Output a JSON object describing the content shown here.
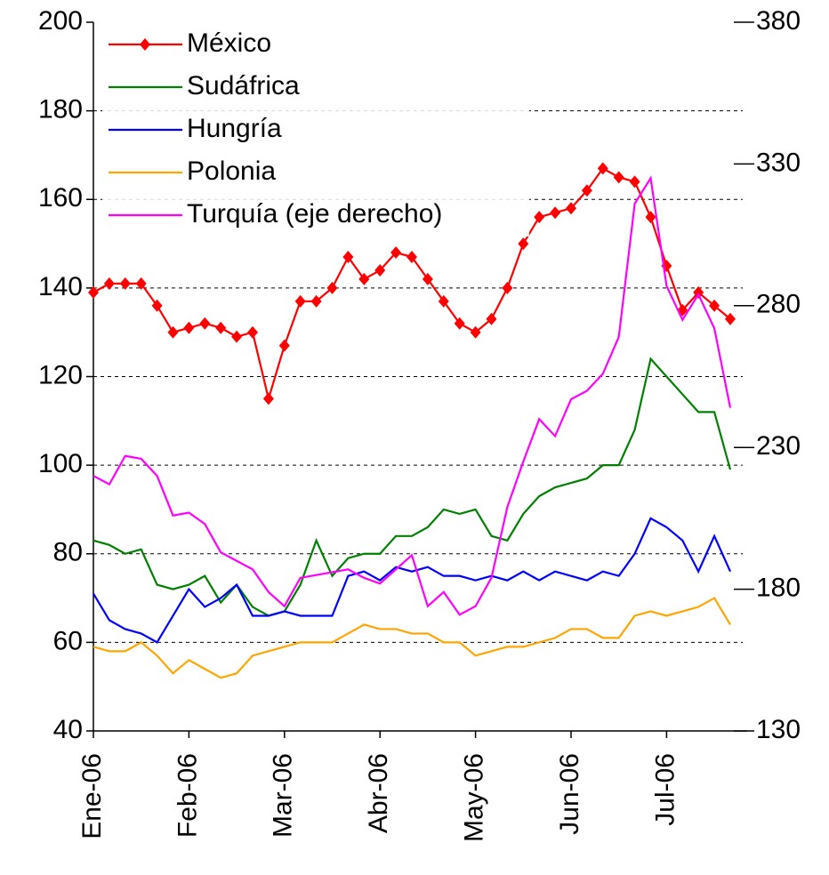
{
  "chart_data": {
    "type": "line",
    "categories": [
      "Ene-06",
      null,
      null,
      null,
      null,
      null,
      "Feb-06",
      null,
      null,
      null,
      null,
      null,
      "Mar-06",
      null,
      null,
      null,
      null,
      null,
      "Abr-06",
      null,
      null,
      null,
      null,
      null,
      "May-06",
      null,
      null,
      null,
      null,
      null,
      "Jun-06",
      null,
      null,
      null,
      null,
      null,
      "Jul-06",
      null,
      null,
      null,
      null
    ],
    "series": [
      {
        "name": "México",
        "color": "#ff0000",
        "marker": "diamond",
        "values": [
          139,
          141,
          141,
          141,
          136,
          130,
          131,
          132,
          131,
          129,
          130,
          115,
          127,
          137,
          137,
          140,
          147,
          142,
          144,
          148,
          147,
          142,
          137,
          132,
          130,
          133,
          140,
          150,
          156,
          157,
          158,
          162,
          167,
          165,
          164,
          156,
          145,
          135,
          139,
          136,
          133
        ]
      },
      {
        "name": "Sudáfrica",
        "color": "#008000",
        "values": [
          83,
          82,
          80,
          81,
          73,
          72,
          73,
          75,
          69,
          73,
          68,
          66,
          67,
          73,
          83,
          75,
          79,
          80,
          80,
          84,
          84,
          86,
          90,
          89,
          90,
          84,
          83,
          89,
          93,
          95,
          96,
          97,
          100,
          100,
          108,
          124,
          120,
          116,
          112,
          112,
          99
        ]
      },
      {
        "name": "Hungría",
        "color": "#0000ff",
        "values": [
          71,
          65,
          63,
          62,
          60,
          66,
          72,
          68,
          70,
          73,
          66,
          66,
          67,
          66,
          66,
          66,
          75,
          76,
          74,
          77,
          76,
          77,
          75,
          75,
          74,
          75,
          74,
          76,
          74,
          76,
          75,
          74,
          76,
          75,
          80,
          88,
          86,
          83,
          76,
          84,
          76
        ]
      },
      {
        "name": "Polonia",
        "color": "#ffa500",
        "values": [
          59,
          58,
          58,
          60,
          57,
          53,
          56,
          54,
          52,
          53,
          57,
          58,
          59,
          60,
          60,
          60,
          62,
          64,
          63,
          63,
          62,
          62,
          60,
          60,
          57,
          58,
          59,
          59,
          60,
          61,
          63,
          63,
          61,
          61,
          66,
          67,
          66,
          67,
          68,
          70,
          64
        ]
      },
      {
        "name": "Turquía (eje derecho)",
        "color": "#ff00ff",
        "axis": "y2",
        "values": [
          220,
          217,
          227,
          226,
          220,
          206,
          207,
          203,
          193,
          190,
          187,
          179,
          174,
          184,
          185,
          186,
          187,
          184,
          182,
          187,
          192,
          174,
          179,
          171,
          174,
          184,
          209,
          225,
          240,
          234,
          247,
          250,
          256,
          269,
          316,
          325,
          287,
          275,
          284,
          272,
          244
        ]
      }
    ],
    "ylim": [
      40,
      200
    ],
    "yticks": [
      40,
      60,
      80,
      100,
      120,
      140,
      160,
      180,
      200
    ],
    "y2lim": [
      130,
      380
    ],
    "y2ticks": [
      130,
      180,
      230,
      280,
      330,
      380
    ],
    "grid": true,
    "legend": "top-left"
  }
}
